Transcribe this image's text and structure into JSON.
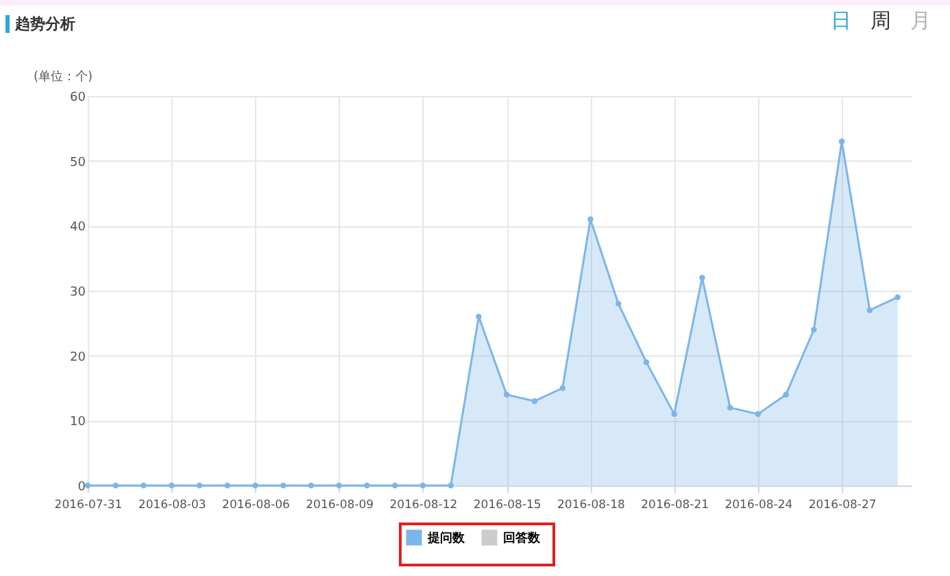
{
  "chart_data": {
    "type": "area",
    "title": "趋势分析",
    "ylabel": "(单位：个)",
    "annotations": [
      "日",
      "周",
      "月"
    ],
    "x": [
      "2016-07-31",
      "2016-08-01",
      "2016-08-02",
      "2016-08-03",
      "2016-08-04",
      "2016-08-05",
      "2016-08-06",
      "2016-08-07",
      "2016-08-08",
      "2016-08-09",
      "2016-08-10",
      "2016-08-11",
      "2016-08-12",
      "2016-08-13",
      "2016-08-14",
      "2016-08-15",
      "2016-08-16",
      "2016-08-17",
      "2016-08-18",
      "2016-08-19",
      "2016-08-20",
      "2016-08-21",
      "2016-08-22",
      "2016-08-23",
      "2016-08-24",
      "2016-08-25",
      "2016-08-26",
      "2016-08-27",
      "2016-08-28",
      "2016-08-29"
    ],
    "series": [
      {
        "name": "提问数",
        "color": "#7cb5ec",
        "values": [
          0,
          0,
          0,
          0,
          0,
          0,
          0,
          0,
          0,
          0,
          0,
          0,
          0,
          0,
          26,
          14,
          13,
          15,
          41,
          28,
          19,
          11,
          32,
          12,
          11,
          14,
          24,
          53,
          27,
          29
        ]
      },
      {
        "name": "回答数",
        "color": "#cccccc",
        "values": [
          null,
          null,
          null,
          null,
          null,
          null,
          null,
          null,
          null,
          null,
          null,
          null,
          null,
          null,
          null,
          null,
          null,
          null,
          null,
          null,
          null,
          null,
          null,
          null,
          null,
          null,
          null,
          null,
          null,
          null
        ]
      }
    ],
    "xlim": [
      "2016-07-31",
      "2016-08-29T12:00"
    ],
    "xticks": [
      "2016-07-31",
      "2016-08-03",
      "2016-08-06",
      "2016-08-09",
      "2016-08-12",
      "2016-08-15",
      "2016-08-18",
      "2016-08-21",
      "2016-08-24",
      "2016-08-27"
    ],
    "ylim": [
      0,
      60
    ],
    "yticks": [
      0,
      10,
      20,
      30,
      40,
      50,
      60
    ],
    "grid": true,
    "legend": "bottom",
    "marker": "circle",
    "line_style": "solid"
  }
}
